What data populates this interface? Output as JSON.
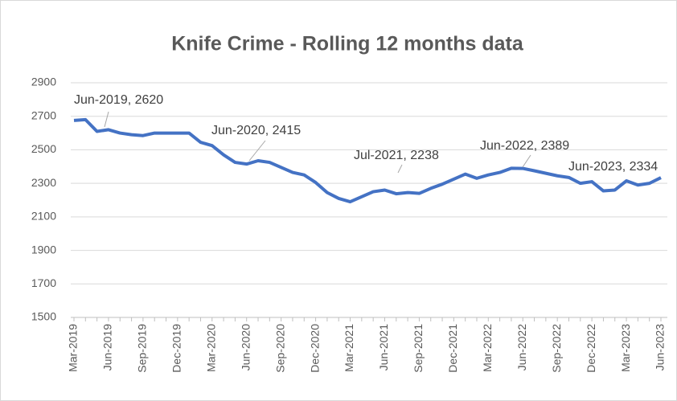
{
  "chart_data": {
    "type": "line",
    "title": "Knife Crime - Rolling 12 months data",
    "categories": [
      "Mar-2019",
      null,
      null,
      "Jun-2019",
      null,
      null,
      "Sep-2019",
      null,
      null,
      "Dec-2019",
      null,
      null,
      "Mar-2020",
      null,
      null,
      "Jun-2020",
      null,
      null,
      "Sep-2020",
      null,
      null,
      "Dec-2020",
      null,
      null,
      "Mar-2021",
      null,
      null,
      "Jun-2021",
      null,
      null,
      "Sep-2021",
      null,
      null,
      "Dec-2021",
      null,
      null,
      "Mar-2022",
      null,
      null,
      "Jun-2022",
      null,
      null,
      "Sep-2022",
      null,
      null,
      "Dec-2022",
      null,
      null,
      "Mar-2023",
      null,
      null,
      "Jun-2023"
    ],
    "series": [
      {
        "name": "Knife Crime",
        "color": "#4472c4",
        "values": [
          2675,
          2680,
          2610,
          2620,
          2600,
          2590,
          2585,
          2600,
          2600,
          2600,
          2600,
          2545,
          2525,
          2470,
          2425,
          2415,
          2435,
          2425,
          2395,
          2365,
          2350,
          2305,
          2245,
          2210,
          2190,
          2220,
          2250,
          2260,
          2238,
          2245,
          2240,
          2270,
          2295,
          2325,
          2355,
          2330,
          2350,
          2365,
          2390,
          2389,
          2375,
          2360,
          2345,
          2335,
          2300,
          2310,
          2255,
          2260,
          2315,
          2290,
          2300,
          2334
        ]
      }
    ],
    "ylim": [
      1500,
      2900
    ],
    "yticks": [
      1500,
      1700,
      1900,
      2100,
      2300,
      2500,
      2700,
      2900
    ],
    "grid": true,
    "annotations": [
      "Jun-2019, 2620",
      "Jun-2020, 2415",
      "Jul-2021, 2238",
      "Jun-2022, 2389",
      "Jun-2023, 2334"
    ]
  }
}
